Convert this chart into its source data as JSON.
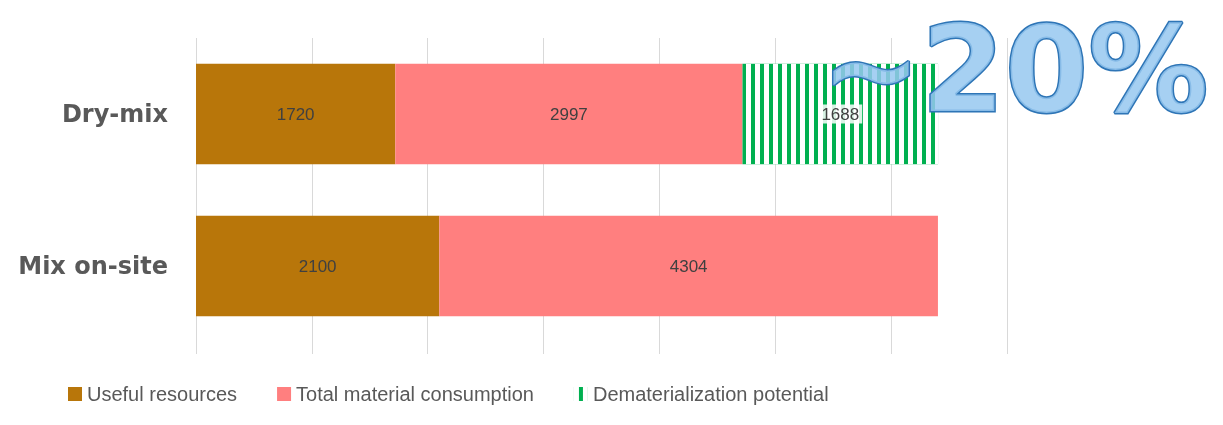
{
  "chart_data": {
    "type": "bar",
    "orientation": "horizontal",
    "stacked": true,
    "categories": [
      "Dry-mix",
      "Mix on-site"
    ],
    "series": [
      {
        "name": "Useful resources",
        "color": "#b8760a",
        "values": [
          1720,
          2100
        ]
      },
      {
        "name": "Total material consumption",
        "color": "#ff7f7f",
        "values": [
          2997,
          4304
        ]
      },
      {
        "name": "Dematerialization potential",
        "color": "#00b050",
        "values": [
          1688,
          null
        ]
      }
    ],
    "xlim": [
      0,
      7000
    ],
    "xticks": [
      {
        "value": 0,
        "label": null
      },
      {
        "value": 1000,
        "label": null
      },
      {
        "value": 2000,
        "label": null
      },
      {
        "value": 3000,
        "label": null
      },
      {
        "value": 4000,
        "label": null
      },
      {
        "value": 5000,
        "label": null
      },
      {
        "value": 6000,
        "label": null
      },
      {
        "value": 7000,
        "label": null
      }
    ],
    "tick_labels": "y",
    "grid": "x",
    "legend": "bottom",
    "data_labels": true,
    "annotations": [
      "~20%"
    ]
  }
}
